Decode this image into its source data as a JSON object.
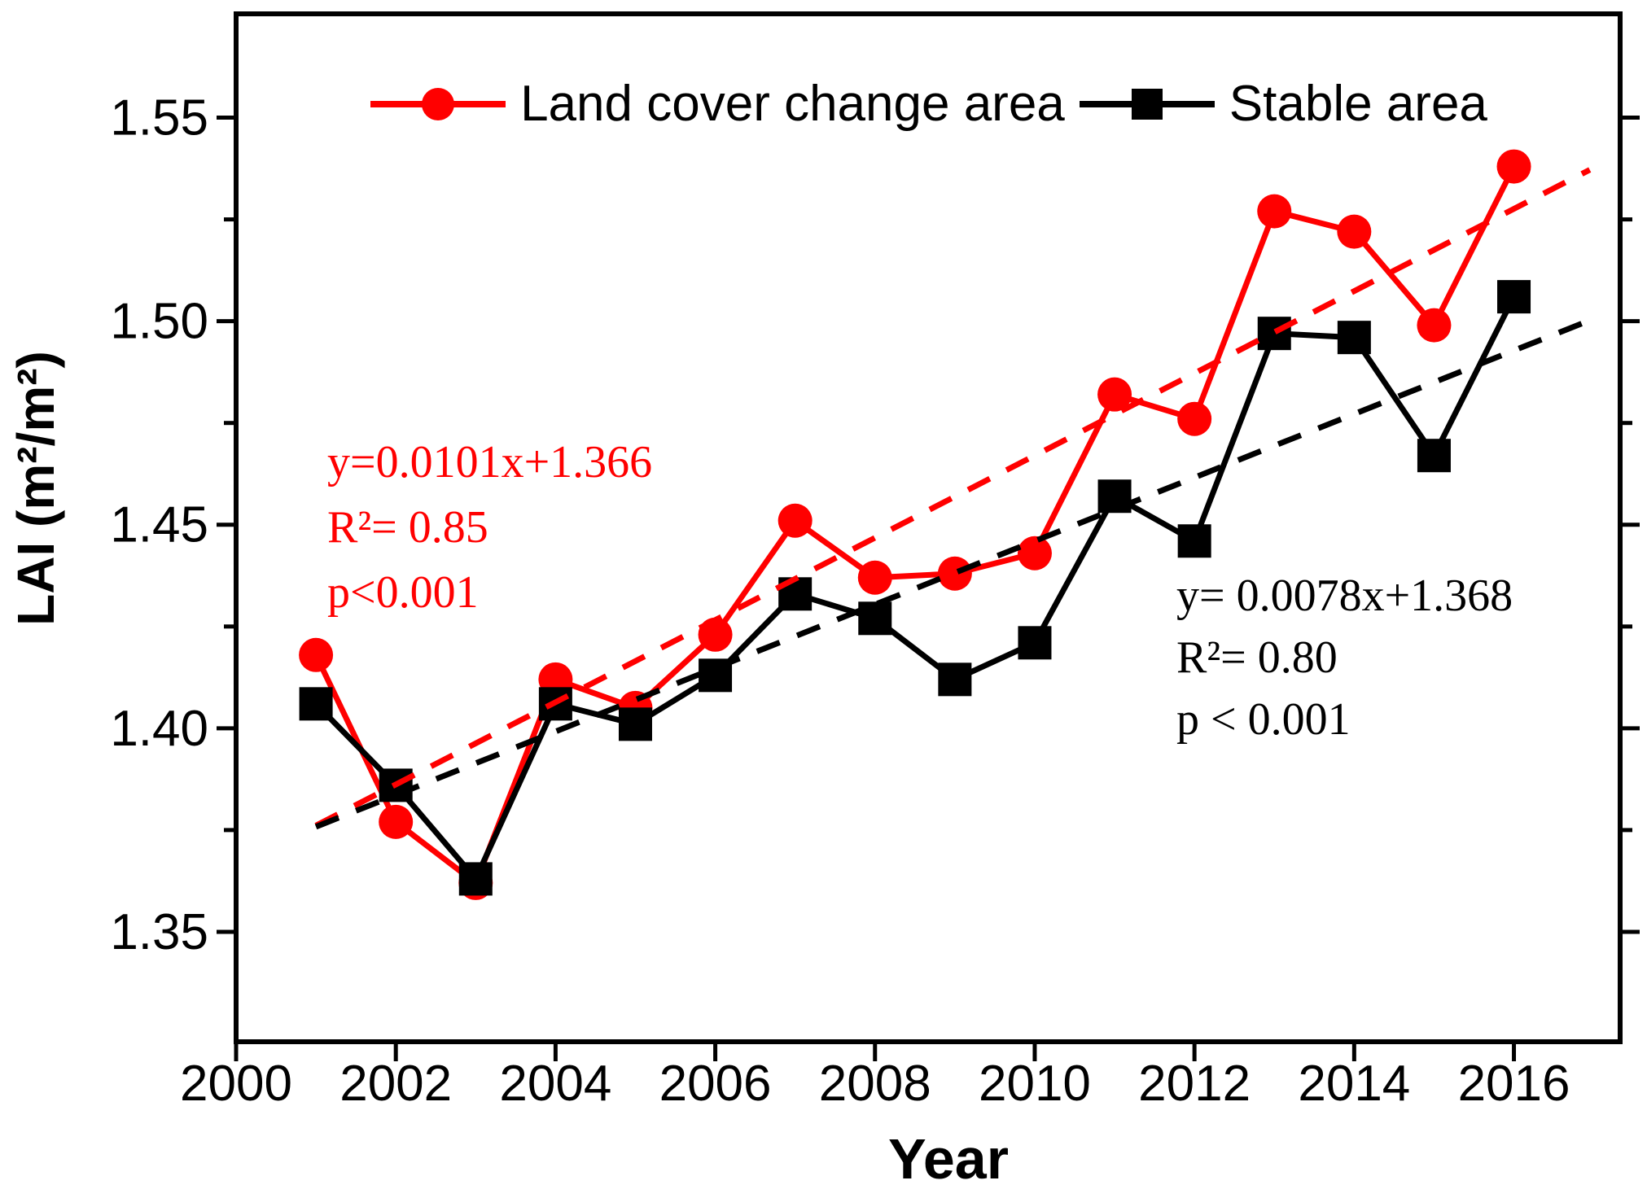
{
  "chart_data": {
    "type": "line",
    "title": "",
    "xlabel": "Year",
    "ylabel": "LAI (m²/m²)",
    "x": [
      2001,
      2002,
      2003,
      2004,
      2005,
      2006,
      2007,
      2008,
      2009,
      2010,
      2011,
      2012,
      2013,
      2014,
      2015,
      2016
    ],
    "series": [
      {
        "name": "Land cover change area",
        "color": "#ff0000",
        "marker": "circle",
        "values": [
          1.418,
          1.377,
          1.362,
          1.412,
          1.405,
          1.423,
          1.451,
          1.437,
          1.438,
          1.443,
          1.482,
          1.476,
          1.527,
          1.522,
          1.499,
          1.538
        ]
      },
      {
        "name": "Stable area",
        "color": "#000000",
        "marker": "square",
        "values": [
          1.406,
          1.386,
          1.363,
          1.406,
          1.401,
          1.413,
          1.433,
          1.427,
          1.412,
          1.421,
          1.457,
          1.446,
          1.497,
          1.496,
          1.467,
          1.506
        ]
      }
    ],
    "trendlines": [
      {
        "series": "Land cover change area",
        "equation": "y=0.0101x+1.366",
        "slope": 0.0101,
        "intercept": 1.366,
        "color": "#ff0000"
      },
      {
        "series": "Stable area",
        "equation": "y= 0.0078x+1.368",
        "slope": 0.0078,
        "intercept": 1.368,
        "color": "#000000"
      }
    ],
    "trend_x_range": [
      2001,
      2016.95
    ],
    "annotations": [
      {
        "color": "#ff0000",
        "lines": [
          "y=0.0101x+1.366",
          "R²= 0.85",
          "p<0.001"
        ]
      },
      {
        "color": "#000000",
        "lines": [
          "y= 0.0078x+1.368",
          "R²= 0.80",
          "p < 0.001"
        ]
      }
    ],
    "xticks": [
      2000,
      2002,
      2004,
      2006,
      2008,
      2010,
      2012,
      2014,
      2016
    ],
    "yticks": [
      1.35,
      1.4,
      1.45,
      1.5,
      1.55
    ],
    "yticks_minor": [
      1.375,
      1.425,
      1.475,
      1.525
    ],
    "xlim": [
      2000,
      2017.33
    ],
    "ylim": [
      1.323,
      1.5755
    ],
    "legend_position": "top-center",
    "grid": false
  }
}
